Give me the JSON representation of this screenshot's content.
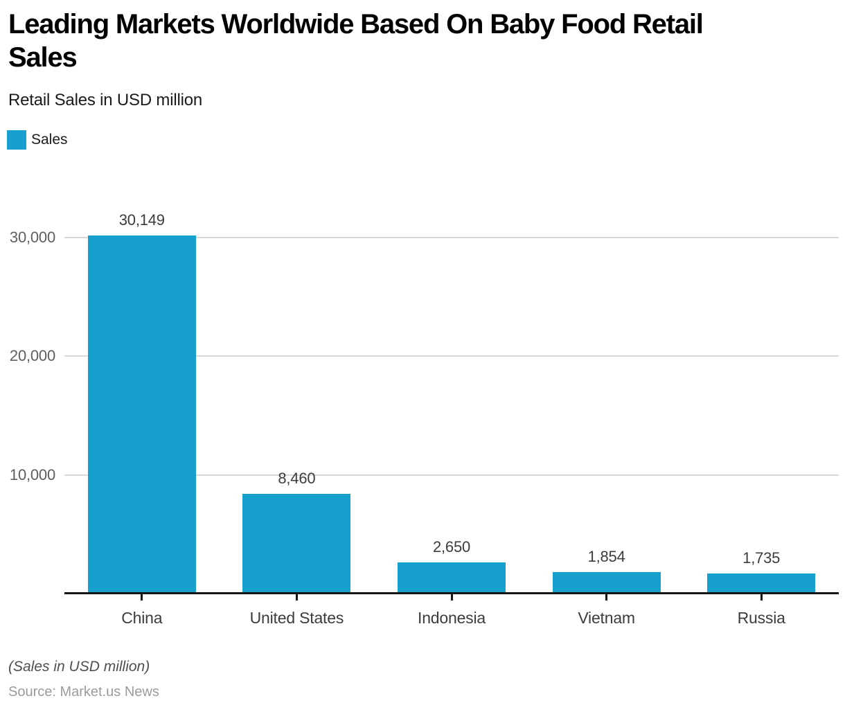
{
  "header": {
    "title_lines": [
      "Leading Markets Worldwide Based On Baby Food Retail",
      "Sales"
    ],
    "title_full": "Leading Markets Worldwide Based On Baby Food Retail Sales",
    "subtitle": "Retail Sales in USD million"
  },
  "legend": {
    "label": "Sales",
    "color": "#17A0CE"
  },
  "chart_data": {
    "type": "bar",
    "title": "Leading Markets Worldwide Based On Baby Food Retail Sales",
    "subtitle": "Retail Sales in USD million",
    "series_name": "Sales",
    "categories": [
      "China",
      "United States",
      "Indonesia",
      "Vietnam",
      "Russia"
    ],
    "values": [
      30149,
      8460,
      2650,
      1854,
      1735
    ],
    "value_labels": [
      "30,149",
      "8,460",
      "2,650",
      "1,854",
      "1,735"
    ],
    "xlabel": "",
    "ylabel": "",
    "ylim": [
      0,
      30000
    ],
    "yticks": [
      10000,
      20000,
      30000
    ],
    "ytick_labels": [
      "10,000",
      "20,000",
      "30,000"
    ],
    "grid": true,
    "legend_position": "top-left",
    "bar_color": "#17A0CE",
    "gridline_color": "#d8d8d8",
    "axis_color": "#141414"
  },
  "footer": {
    "note": "(Sales in USD million)",
    "source": "Source: Market.us News"
  }
}
